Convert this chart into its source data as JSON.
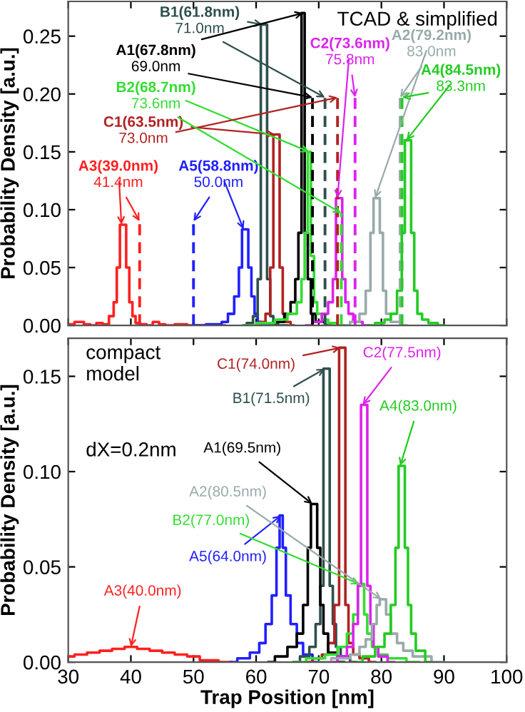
{
  "chart_data": [
    {
      "type": "step",
      "ylabel": "Probability Density [a.u.]",
      "xlim": [
        30,
        100
      ],
      "ylim": [
        0,
        0.28
      ],
      "xticks": [
        30,
        40,
        50,
        60,
        70,
        80,
        90,
        100
      ],
      "yticks": [
        {
          "value": 0,
          "label": "0.00"
        },
        0.05,
        {
          "value": 0.1,
          "label": "0.10"
        },
        0.15,
        {
          "value": 0.2,
          "label": "0.20"
        },
        0.25
      ],
      "tick_labels": "y",
      "grid": false,
      "annotations": [
        "TCAD & simplified",
        {
          "text": "A3(39.0nm)",
          "x": 38.5,
          "y": 0.087
        },
        {
          "text": "A5(58.8nm)",
          "x": 58,
          "y": 0.083
        },
        {
          "text": "B1(61.8nm)",
          "x": 61,
          "y": 0.26
        },
        {
          "text": "C1(63.5nm)",
          "x": 63,
          "y": 0.165
        },
        {
          "text": "A1(67.8nm)",
          "x": 67.5,
          "y": 0.27
        },
        {
          "text": "B2(68.7nm)",
          "x": 68.5,
          "y": 0.15
        },
        {
          "text": "C2(73.6nm)",
          "x": 73,
          "y": 0.11
        },
        {
          "text": "A2(79.2nm)",
          "x": 79,
          "y": 0.11
        },
        {
          "text": "A4(84.5nm)",
          "x": 84,
          "y": 0.16
        },
        {
          "text": "41.4nm",
          "x": 41.4,
          "y": 0.09
        },
        {
          "text": "50.0nm",
          "x": 50.0,
          "y": 0.09
        },
        {
          "text": "71.0nm",
          "x": 71.0,
          "y": 0.197
        },
        {
          "text": "73.0nm",
          "x": 73.0,
          "y": 0.197
        },
        {
          "text": "69.0nm",
          "x": 69.0,
          "y": 0.197
        },
        {
          "text": "73.6nm",
          "x": 73.6,
          "y": 0.097
        },
        {
          "text": "75.8nm",
          "x": 75.8,
          "y": 0.197
        },
        {
          "text": "83.0nm",
          "x": 83.0,
          "y": 0.197
        },
        {
          "text": "83.3nm",
          "x": 83.3,
          "y": 0.197
        }
      ],
      "series": [
        {
          "color": "#ff2020",
          "x": [
            30,
            32,
            33,
            34,
            35,
            36,
            37,
            37.5,
            38,
            38.5,
            39,
            39.5,
            40,
            40.5,
            41,
            42,
            43,
            44,
            45,
            46,
            48,
            50,
            55
          ],
          "values": [
            0.001,
            0.003,
            0.001,
            0,
            0.002,
            0.001,
            0.008,
            0.02,
            0.05,
            0.087,
            0.087,
            0.05,
            0.02,
            0.008,
            0.002,
            0.001,
            0,
            0.003,
            0.001,
            0,
            0.001,
            0,
            0
          ]
        },
        {
          "color": "#2020ff",
          "x": [
            50,
            54,
            55,
            56,
            57,
            57.5,
            58,
            58.5,
            59,
            59.5,
            60,
            60.5,
            61,
            62,
            63
          ],
          "values": [
            0,
            0.001,
            0.003,
            0.01,
            0.025,
            0.05,
            0.083,
            0.083,
            0.05,
            0.025,
            0.01,
            0.003,
            0.001,
            0,
            0
          ]
        },
        {
          "color": "#2f4f4f",
          "x": [
            58,
            59,
            60,
            60.5,
            61,
            61.5,
            62,
            62.5,
            63,
            64,
            65
          ],
          "values": [
            0,
            0.002,
            0.008,
            0.04,
            0.26,
            0.26,
            0.04,
            0.008,
            0.002,
            0,
            0
          ]
        },
        {
          "color": "#b22222",
          "x": [
            60,
            61,
            62,
            62.5,
            63,
            63.5,
            64,
            64.5,
            65,
            66
          ],
          "values": [
            0,
            0.003,
            0.01,
            0.05,
            0.165,
            0.165,
            0.05,
            0.01,
            0.003,
            0
          ]
        },
        {
          "color": "#000000",
          "x": [
            62,
            64,
            65,
            66,
            66.5,
            67,
            67.5,
            68,
            68.5,
            69,
            70,
            72
          ],
          "values": [
            0,
            0.003,
            0.01,
            0.02,
            0.04,
            0.08,
            0.27,
            0.08,
            0.04,
            0.01,
            0.003,
            0
          ]
        },
        {
          "color": "#33dd33",
          "x": [
            58,
            62,
            64,
            66,
            67,
            67.5,
            68,
            68.5,
            69,
            69.5,
            70,
            71,
            72,
            74
          ],
          "values": [
            0,
            0.002,
            0.005,
            0.01,
            0.02,
            0.04,
            0.08,
            0.15,
            0.06,
            0.02,
            0.01,
            0.005,
            0.002,
            0
          ]
        },
        {
          "color": "#dd22ee",
          "x": [
            68,
            70,
            71,
            72,
            72.5,
            73,
            73.5,
            74,
            74.5,
            75,
            76,
            78
          ],
          "values": [
            0,
            0.003,
            0.01,
            0.02,
            0.04,
            0.11,
            0.11,
            0.04,
            0.02,
            0.01,
            0.003,
            0
          ]
        },
        {
          "color": "#99aaaa",
          "x": [
            74,
            76,
            77,
            78,
            78.5,
            79,
            79.5,
            80,
            80.5,
            81,
            82,
            84
          ],
          "values": [
            0,
            0.003,
            0.01,
            0.03,
            0.08,
            0.11,
            0.11,
            0.08,
            0.03,
            0.01,
            0.003,
            0
          ]
        },
        {
          "color": "#22cc22",
          "x": [
            78,
            80,
            81,
            82,
            83,
            83.5,
            84,
            84.5,
            85,
            85.5,
            86,
            87,
            88,
            90
          ],
          "values": [
            0,
            0.002,
            0.005,
            0.01,
            0.03,
            0.08,
            0.16,
            0.16,
            0.08,
            0.03,
            0.01,
            0.005,
            0.002,
            0
          ]
        },
        {
          "type": "line",
          "line_style": "dashed",
          "color": "#ff2020",
          "x": [
            41.4,
            41.4
          ],
          "values": [
            0,
            0.09
          ]
        },
        {
          "type": "line",
          "line_style": "dashed",
          "color": "#2020ff",
          "x": [
            50.0,
            50.0
          ],
          "values": [
            0,
            0.09
          ]
        },
        {
          "type": "line",
          "line_style": "dashed",
          "color": "#2f4f4f",
          "x": [
            71.0,
            71.0
          ],
          "values": [
            0,
            0.197
          ]
        },
        {
          "type": "line",
          "line_style": "dashed",
          "color": "#b22222",
          "x": [
            73.0,
            73.0
          ],
          "values": [
            0,
            0.197
          ]
        },
        {
          "type": "line",
          "line_style": "dashed",
          "color": "#000000",
          "x": [
            69.0,
            69.0
          ],
          "values": [
            0,
            0.197
          ]
        },
        {
          "type": "line",
          "line_style": "dashed",
          "color": "#33dd33",
          "x": [
            73.6,
            73.6
          ],
          "values": [
            0,
            0.097
          ]
        },
        {
          "type": "line",
          "line_style": "dashed",
          "color": "#dd22ee",
          "x": [
            75.8,
            75.8
          ],
          "values": [
            0,
            0.197
          ]
        },
        {
          "type": "line",
          "line_style": "dashed",
          "color": "#99aaaa",
          "x": [
            83.0,
            83.0
          ],
          "values": [
            0,
            0.197
          ]
        },
        {
          "type": "line",
          "line_style": "dashed",
          "color": "#22cc22",
          "x": [
            83.3,
            83.3
          ],
          "values": [
            0,
            0.197
          ]
        }
      ]
    },
    {
      "type": "step",
      "xlabel": "Trap Position [nm]",
      "ylabel": "Probability Density [a.u.]",
      "xlim": [
        30,
        100
      ],
      "ylim": [
        0,
        0.17
      ],
      "xticks": [
        30,
        40,
        50,
        60,
        70,
        80,
        90,
        100
      ],
      "yticks": [
        {
          "value": 0,
          "label": "0.00"
        },
        0.05,
        {
          "value": 0.1,
          "label": "0.10"
        },
        0.15
      ],
      "grid": false,
      "annotations": [
        "compact\nmodel",
        "dX=0.2nm",
        {
          "text": "A3(40.0nm)",
          "x": 40,
          "y": 0.008
        },
        {
          "text": "A5(64.0nm)",
          "x": 64,
          "y": 0.077
        },
        {
          "text": "B1(71.5nm)",
          "x": 71,
          "y": 0.154
        },
        {
          "text": "C1(74.0nm)",
          "x": 73.5,
          "y": 0.165
        },
        {
          "text": "A1(69.5nm)",
          "x": 69,
          "y": 0.083
        },
        {
          "text": "B2(77.0nm)",
          "x": 76.5,
          "y": 0.041
        },
        {
          "text": "C2(77.5nm)",
          "x": 77,
          "y": 0.135
        },
        {
          "text": "A2(80.5nm)",
          "x": 80,
          "y": 0.033
        },
        {
          "text": "A4(83.0nm)",
          "x": 83,
          "y": 0.103
        }
      ],
      "series": [
        {
          "color": "#ff2020",
          "x": [
            30,
            32,
            34,
            36,
            38,
            40,
            42,
            44,
            46,
            48,
            50,
            52,
            56
          ],
          "values": [
            0.003,
            0.004,
            0.005,
            0.006,
            0.007,
            0.008,
            0.007,
            0.006,
            0.005,
            0.004,
            0.003,
            0.001,
            0
          ]
        },
        {
          "color": "#2020ff",
          "x": [
            56,
            58,
            60,
            61,
            62,
            63,
            63.5,
            64,
            64.5,
            65,
            66,
            67,
            68,
            70
          ],
          "values": [
            0,
            0.002,
            0.005,
            0.01,
            0.02,
            0.035,
            0.06,
            0.077,
            0.06,
            0.035,
            0.02,
            0.01,
            0.004,
            0
          ]
        },
        {
          "color": "#2f4f4f",
          "x": [
            66,
            68,
            69,
            70,
            70.5,
            71,
            71.5,
            72,
            72.5,
            73,
            74,
            76
          ],
          "values": [
            0,
            0.003,
            0.008,
            0.02,
            0.04,
            0.154,
            0.154,
            0.04,
            0.02,
            0.008,
            0.003,
            0
          ]
        },
        {
          "color": "#b22222",
          "x": [
            68,
            70,
            71,
            72,
            73,
            73.5,
            74,
            74.5,
            75,
            76,
            77,
            79
          ],
          "values": [
            0,
            0.002,
            0.004,
            0.01,
            0.03,
            0.165,
            0.165,
            0.03,
            0.01,
            0.004,
            0.002,
            0
          ]
        },
        {
          "color": "#000000",
          "x": [
            62,
            64,
            66,
            67,
            68,
            68.5,
            69,
            69.5,
            70,
            70.5,
            71,
            72,
            74
          ],
          "values": [
            0,
            0.003,
            0.008,
            0.015,
            0.03,
            0.06,
            0.083,
            0.083,
            0.06,
            0.03,
            0.015,
            0.005,
            0
          ]
        },
        {
          "color": "#33dd33",
          "x": [
            66,
            70,
            72,
            74,
            75,
            76,
            76.5,
            77,
            77.5,
            78,
            79,
            80,
            82,
            86
          ],
          "values": [
            0,
            0.002,
            0.004,
            0.008,
            0.015,
            0.025,
            0.041,
            0.041,
            0.025,
            0.015,
            0.008,
            0.004,
            0.002,
            0
          ]
        },
        {
          "color": "#dd22ee",
          "x": [
            72,
            74,
            75,
            76,
            76.5,
            77,
            77.5,
            78,
            78.5,
            79,
            80,
            82
          ],
          "values": [
            0,
            0.003,
            0.008,
            0.02,
            0.04,
            0.135,
            0.135,
            0.04,
            0.02,
            0.008,
            0.003,
            0
          ]
        },
        {
          "color": "#99aaaa",
          "x": [
            70,
            74,
            76,
            77,
            78,
            79,
            79.5,
            80,
            80.5,
            81,
            82,
            83,
            84,
            86,
            90
          ],
          "values": [
            0,
            0.002,
            0.004,
            0.008,
            0.012,
            0.02,
            0.03,
            0.033,
            0.033,
            0.025,
            0.015,
            0.01,
            0.006,
            0.003,
            0
          ]
        },
        {
          "color": "#22cc22",
          "x": [
            76,
            78,
            80,
            81,
            82,
            82.5,
            83,
            83.5,
            84,
            84.5,
            85,
            86,
            88
          ],
          "values": [
            0,
            0.003,
            0.008,
            0.015,
            0.03,
            0.06,
            0.103,
            0.103,
            0.06,
            0.03,
            0.015,
            0.006,
            0
          ]
        }
      ]
    }
  ]
}
